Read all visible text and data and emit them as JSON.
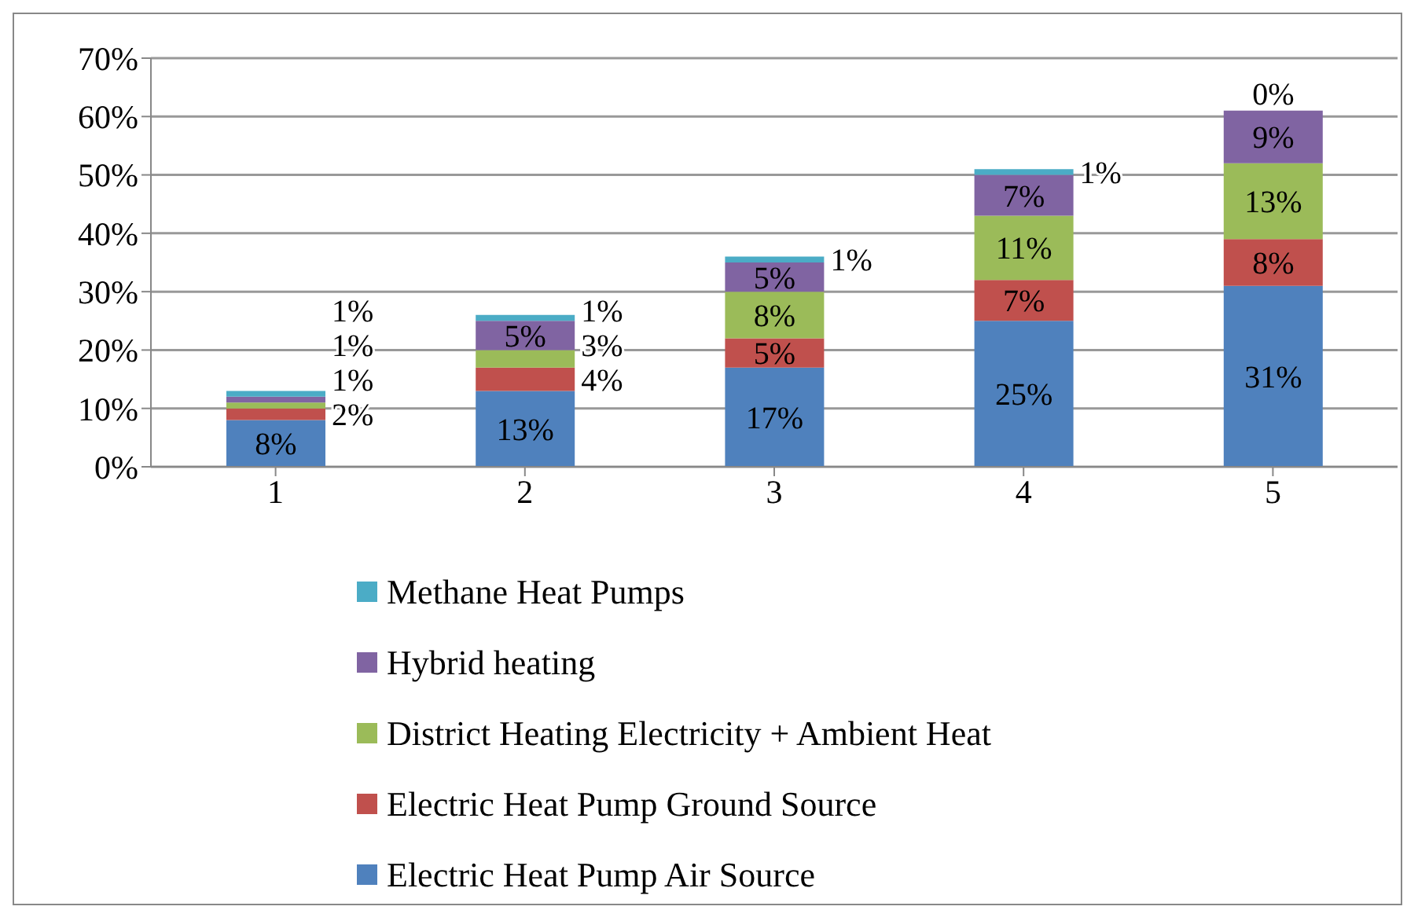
{
  "chart_data": {
    "type": "bar",
    "stacked": true,
    "categories": [
      "1",
      "2",
      "3",
      "4",
      "5"
    ],
    "series": [
      {
        "name": "Electric Heat Pump Air Source",
        "color": "#4f81bd",
        "values": [
          8,
          13,
          17,
          25,
          31
        ],
        "value_labels": [
          "8%",
          "13%",
          "17%",
          "25%",
          "31%"
        ]
      },
      {
        "name": "Electric Heat Pump Ground Source",
        "color": "#c0504d",
        "values": [
          2,
          4,
          5,
          7,
          8
        ],
        "value_labels": [
          "2%",
          "4%",
          "5%",
          "7%",
          "8%"
        ]
      },
      {
        "name": "District Heating Electricity + Ambient Heat",
        "color": "#9bbb59",
        "values": [
          1,
          3,
          8,
          11,
          13
        ],
        "value_labels": [
          "1%",
          "3%",
          "8%",
          "11%",
          "13%"
        ]
      },
      {
        "name": "Hybrid heating",
        "color": "#8064a2",
        "values": [
          1,
          5,
          5,
          7,
          9
        ],
        "value_labels": [
          "1%",
          "5%",
          "5%",
          "7%",
          "9%"
        ]
      },
      {
        "name": "Methane Heat Pumps",
        "color": "#4bacc6",
        "values": [
          1,
          1,
          1,
          1,
          0
        ],
        "value_labels": [
          "1%",
          "1%",
          "1%",
          "1%",
          "0%"
        ]
      }
    ],
    "ylim": [
      0,
      70
    ],
    "yticks": [
      {
        "value": 0,
        "label": "0%"
      },
      {
        "value": 10,
        "label": "10%"
      },
      {
        "value": 20,
        "label": "20%"
      },
      {
        "value": 30,
        "label": "30%"
      },
      {
        "value": 40,
        "label": "40%"
      },
      {
        "value": 50,
        "label": "50%"
      },
      {
        "value": 60,
        "label": "60%"
      },
      {
        "value": 70,
        "label": "70%"
      }
    ],
    "grid": "y",
    "legend": "bottom"
  }
}
